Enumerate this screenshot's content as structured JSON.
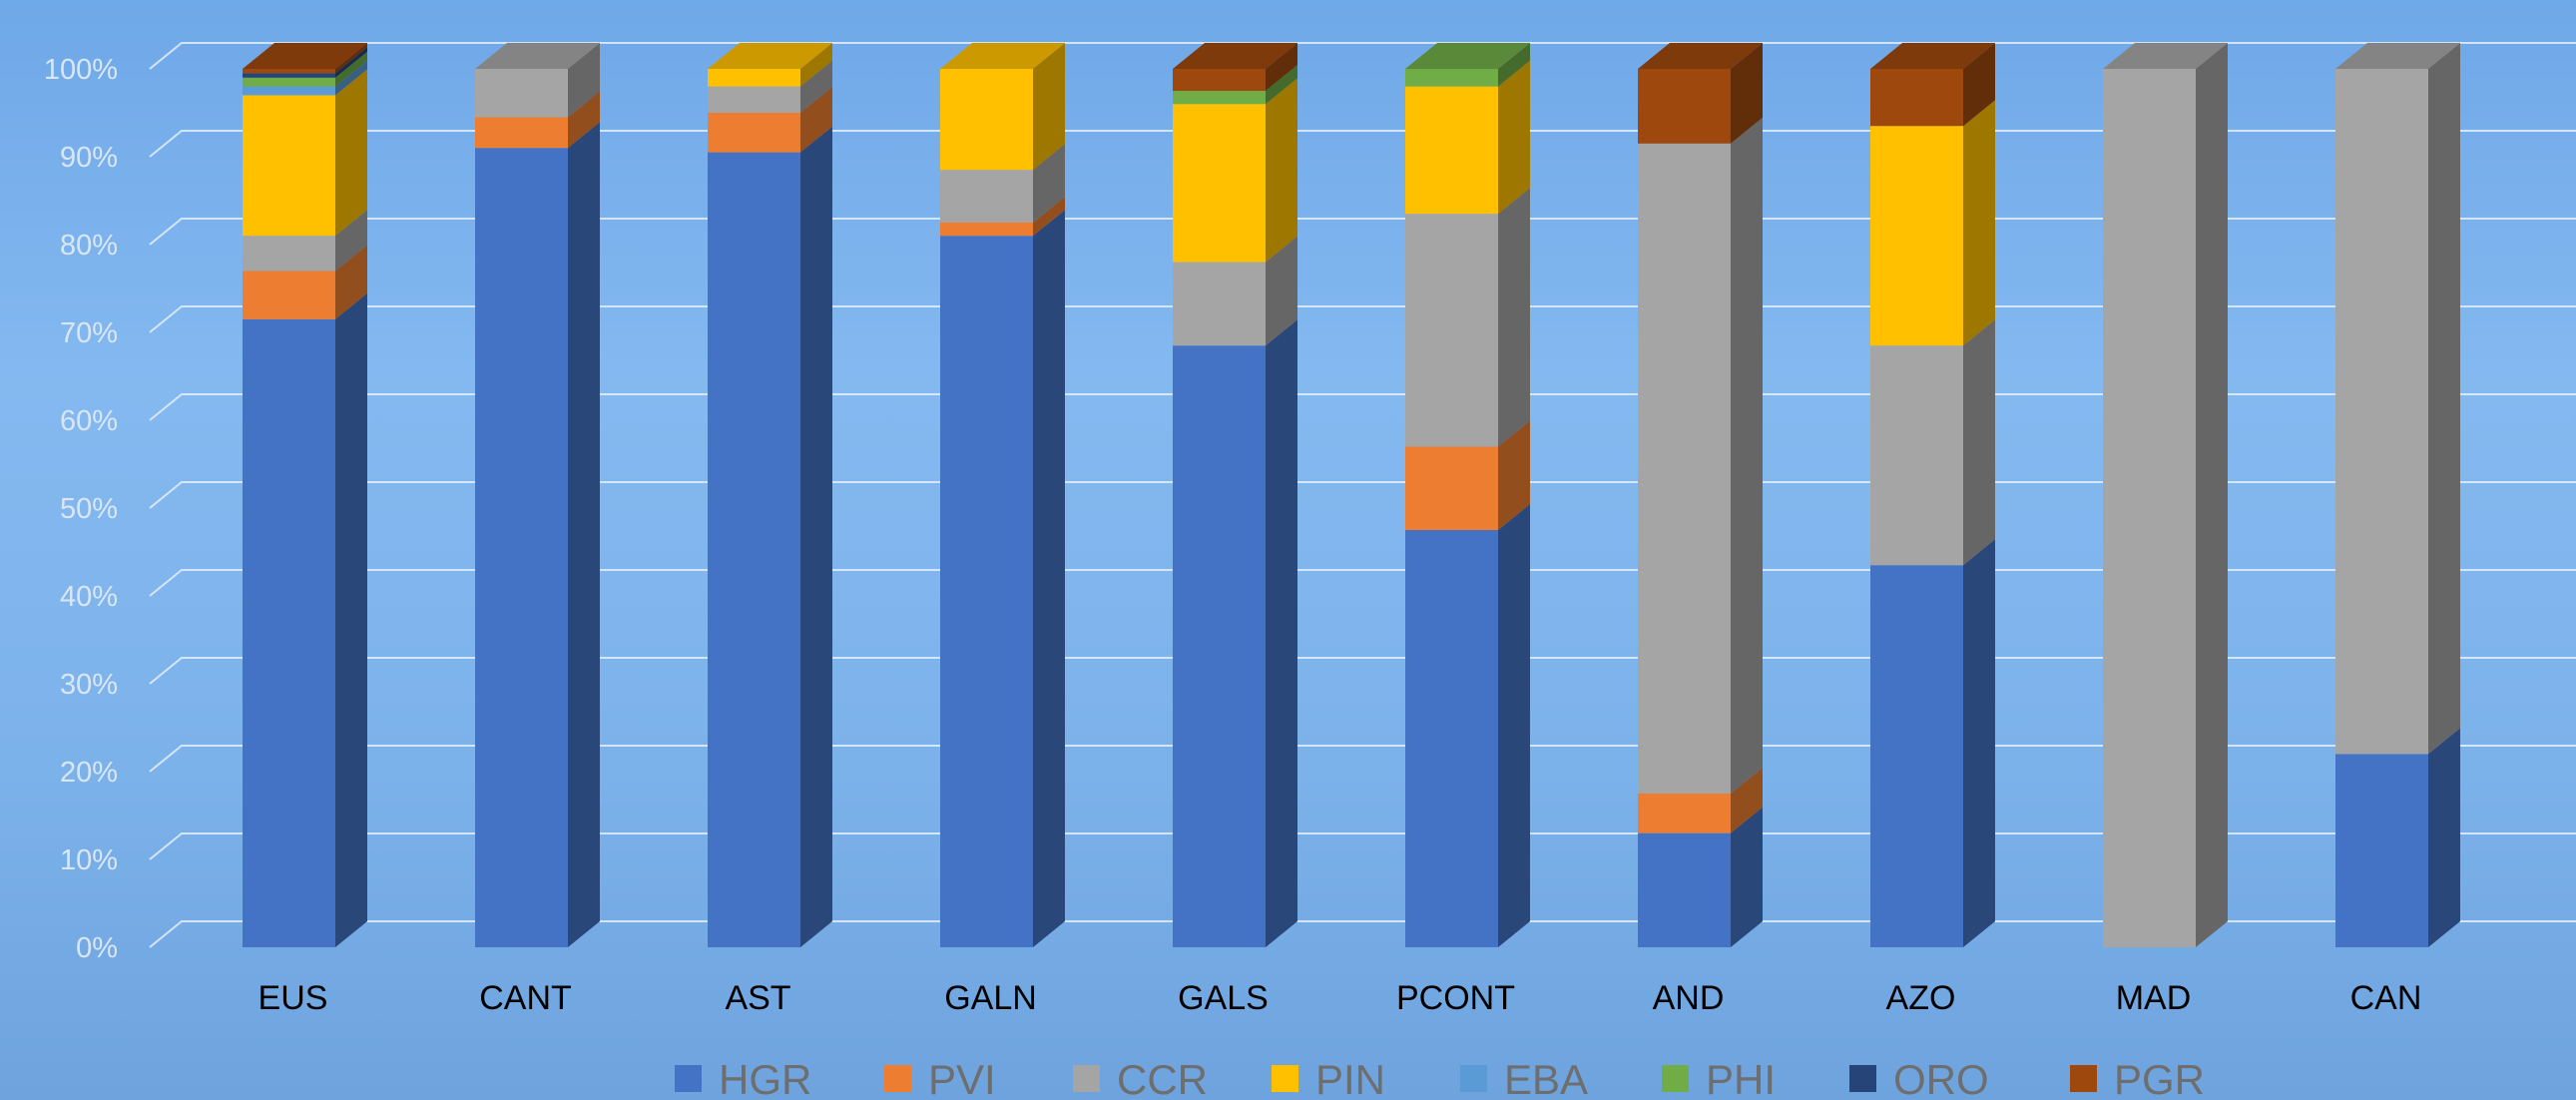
{
  "chart_data": {
    "type": "bar",
    "stacked": true,
    "percent_stacked": true,
    "three_d": true,
    "title": "",
    "xlabel": "",
    "ylabel": "",
    "ylim": [
      0,
      100
    ],
    "y_ticks": [
      "0%",
      "10%",
      "20%",
      "30%",
      "40%",
      "50%",
      "60%",
      "70%",
      "80%",
      "90%",
      "100%"
    ],
    "grid": true,
    "legend_position": "bottom",
    "categories": [
      "EUS",
      "CANT",
      "AST",
      "GALN",
      "GALS",
      "PCONT",
      "AND",
      "AZO",
      "MAD",
      "CAN"
    ],
    "series": [
      {
        "name": "HGR",
        "color": "#4472c4",
        "values": [
          71.5,
          91,
          90.5,
          81,
          68.5,
          47.5,
          13,
          43.5,
          0,
          22
        ]
      },
      {
        "name": "PVI",
        "color": "#ed7d31",
        "values": [
          5.5,
          3.5,
          4.5,
          1.5,
          0,
          9.5,
          4.5,
          0,
          0,
          0
        ]
      },
      {
        "name": "CCR",
        "color": "#a5a5a5",
        "values": [
          4,
          5.5,
          3,
          6,
          9.5,
          26.5,
          74,
          25,
          100,
          78
        ]
      },
      {
        "name": "PIN",
        "color": "#ffc000",
        "values": [
          16,
          0,
          2,
          11.5,
          18,
          14.5,
          0,
          25,
          0,
          0
        ]
      },
      {
        "name": "EBA",
        "color": "#5b9bd5",
        "values": [
          1,
          0,
          0,
          0,
          0,
          0,
          0,
          0,
          0,
          0
        ]
      },
      {
        "name": "PHI",
        "color": "#70ad47",
        "values": [
          1,
          0,
          0,
          0,
          1.5,
          2,
          0,
          0,
          0,
          0
        ]
      },
      {
        "name": "ORO",
        "color": "#264478",
        "values": [
          0.5,
          0,
          0,
          0,
          0,
          0,
          0,
          0,
          0,
          0
        ]
      },
      {
        "name": "PGR",
        "color": "#9e480e",
        "values": [
          0.5,
          0,
          0,
          0,
          2.5,
          0,
          8.5,
          6.5,
          0,
          0
        ]
      }
    ]
  }
}
